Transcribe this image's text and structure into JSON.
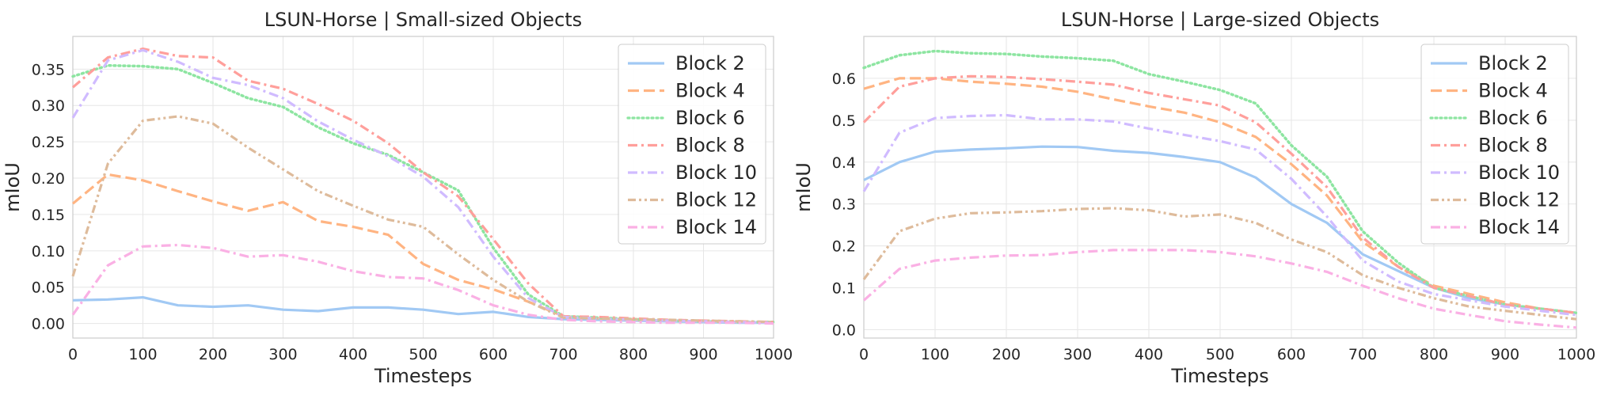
{
  "chart_data": [
    {
      "type": "line",
      "title": "LSUN-Horse | Small-sized Objects",
      "xlabel": "Timesteps",
      "ylabel": "mIoU",
      "xlim": [
        0,
        1000
      ],
      "ylim": [
        -0.02,
        0.395
      ],
      "xticks": [
        0,
        100,
        200,
        300,
        400,
        500,
        600,
        700,
        800,
        900,
        1000
      ],
      "yticks": [
        0.0,
        0.05,
        0.1,
        0.15,
        0.2,
        0.25,
        0.3,
        0.35
      ],
      "ytick_labels": [
        "0.00",
        "0.05",
        "0.10",
        "0.15",
        "0.20",
        "0.25",
        "0.30",
        "0.35"
      ],
      "grid": true,
      "legend": "upper right",
      "x": [
        0,
        50,
        100,
        150,
        200,
        250,
        300,
        350,
        400,
        450,
        500,
        550,
        600,
        650,
        700,
        750,
        800,
        850,
        900,
        950,
        1000
      ],
      "series": [
        {
          "name": "Block 2",
          "color": "#a1c9f4",
          "dash": "solid",
          "values": [
            0.032,
            0.033,
            0.036,
            0.025,
            0.023,
            0.025,
            0.019,
            0.017,
            0.022,
            0.022,
            0.019,
            0.013,
            0.016,
            0.009,
            0.006,
            0.005,
            0.004,
            0.003,
            0.002,
            0.001,
            0.001
          ]
        },
        {
          "name": "Block 4",
          "color": "#ffb482",
          "dash": "dashed",
          "values": [
            0.165,
            0.205,
            0.197,
            0.182,
            0.168,
            0.155,
            0.167,
            0.141,
            0.133,
            0.122,
            0.082,
            0.06,
            0.047,
            0.03,
            0.01,
            0.007,
            0.005,
            0.004,
            0.003,
            0.002,
            0.001
          ]
        },
        {
          "name": "Block 6",
          "color": "#8de5a1",
          "dash": "dotted",
          "values": [
            0.34,
            0.355,
            0.354,
            0.35,
            0.331,
            0.31,
            0.298,
            0.27,
            0.248,
            0.232,
            0.208,
            0.183,
            0.104,
            0.04,
            0.01,
            0.008,
            0.006,
            0.004,
            0.003,
            0.002,
            0.002
          ]
        },
        {
          "name": "Block 8",
          "color": "#ff9f9b",
          "dash": "dashdot",
          "values": [
            0.325,
            0.366,
            0.378,
            0.368,
            0.366,
            0.334,
            0.323,
            0.302,
            0.279,
            0.248,
            0.208,
            0.175,
            0.116,
            0.055,
            0.01,
            0.009,
            0.007,
            0.005,
            0.004,
            0.003,
            0.002
          ]
        },
        {
          "name": "Block 10",
          "color": "#d0bbff",
          "dash": "dashdot",
          "values": [
            0.283,
            0.362,
            0.376,
            0.36,
            0.338,
            0.328,
            0.31,
            0.278,
            0.253,
            0.23,
            0.202,
            0.16,
            0.092,
            0.035,
            0.009,
            0.007,
            0.005,
            0.004,
            0.003,
            0.002,
            0.001
          ]
        },
        {
          "name": "Block 12",
          "color": "#debb9b",
          "dash": "dashdotdot",
          "values": [
            0.065,
            0.22,
            0.279,
            0.285,
            0.275,
            0.242,
            0.212,
            0.182,
            0.162,
            0.143,
            0.133,
            0.095,
            0.06,
            0.03,
            0.008,
            0.007,
            0.006,
            0.005,
            0.004,
            0.003,
            0.002
          ]
        },
        {
          "name": "Block 14",
          "color": "#fab0e4",
          "dash": "dashdot",
          "values": [
            0.012,
            0.08,
            0.106,
            0.108,
            0.104,
            0.092,
            0.094,
            0.085,
            0.072,
            0.064,
            0.062,
            0.046,
            0.025,
            0.012,
            0.005,
            0.003,
            0.002,
            0.001,
            0.001,
            0.001,
            0.0
          ]
        }
      ]
    },
    {
      "type": "line",
      "title": "LSUN-Horse | Large-sized Objects",
      "xlabel": "Timesteps",
      "ylabel": "mIoU",
      "xlim": [
        0,
        1000
      ],
      "ylim": [
        -0.02,
        0.7
      ],
      "xticks": [
        0,
        100,
        200,
        300,
        400,
        500,
        600,
        700,
        800,
        900,
        1000
      ],
      "yticks": [
        0.0,
        0.1,
        0.2,
        0.3,
        0.4,
        0.5,
        0.6
      ],
      "ytick_labels": [
        "0.0",
        "0.1",
        "0.2",
        "0.3",
        "0.4",
        "0.5",
        "0.6"
      ],
      "grid": true,
      "legend": "upper right",
      "x": [
        0,
        50,
        100,
        150,
        200,
        250,
        300,
        350,
        400,
        450,
        500,
        550,
        600,
        650,
        700,
        750,
        800,
        850,
        900,
        950,
        1000
      ],
      "series": [
        {
          "name": "Block 2",
          "color": "#a1c9f4",
          "dash": "solid",
          "values": [
            0.357,
            0.4,
            0.425,
            0.43,
            0.433,
            0.437,
            0.436,
            0.427,
            0.422,
            0.412,
            0.4,
            0.363,
            0.3,
            0.255,
            0.18,
            0.14,
            0.1,
            0.075,
            0.06,
            0.05,
            0.04
          ]
        },
        {
          "name": "Block 4",
          "color": "#ffb482",
          "dash": "dashed",
          "values": [
            0.575,
            0.6,
            0.6,
            0.592,
            0.587,
            0.58,
            0.568,
            0.55,
            0.533,
            0.518,
            0.495,
            0.46,
            0.395,
            0.32,
            0.21,
            0.15,
            0.105,
            0.085,
            0.065,
            0.05,
            0.04
          ]
        },
        {
          "name": "Block 6",
          "color": "#8de5a1",
          "dash": "dotted",
          "values": [
            0.625,
            0.655,
            0.665,
            0.66,
            0.658,
            0.652,
            0.648,
            0.642,
            0.61,
            0.592,
            0.572,
            0.54,
            0.44,
            0.365,
            0.235,
            0.16,
            0.1,
            0.08,
            0.06,
            0.05,
            0.04
          ]
        },
        {
          "name": "Block 8",
          "color": "#ff9f9b",
          "dash": "dashdot",
          "values": [
            0.495,
            0.58,
            0.6,
            0.605,
            0.603,
            0.598,
            0.592,
            0.585,
            0.565,
            0.55,
            0.535,
            0.495,
            0.42,
            0.34,
            0.22,
            0.15,
            0.1,
            0.08,
            0.06,
            0.05,
            0.04
          ]
        },
        {
          "name": "Block 10",
          "color": "#d0bbff",
          "dash": "dashdot",
          "values": [
            0.33,
            0.47,
            0.505,
            0.51,
            0.512,
            0.502,
            0.502,
            0.497,
            0.48,
            0.465,
            0.45,
            0.43,
            0.36,
            0.27,
            0.165,
            0.115,
            0.085,
            0.07,
            0.055,
            0.045,
            0.035
          ]
        },
        {
          "name": "Block 12",
          "color": "#debb9b",
          "dash": "dashdotdot",
          "values": [
            0.12,
            0.235,
            0.265,
            0.278,
            0.28,
            0.283,
            0.288,
            0.29,
            0.285,
            0.27,
            0.275,
            0.255,
            0.215,
            0.185,
            0.13,
            0.1,
            0.075,
            0.055,
            0.045,
            0.035,
            0.025
          ]
        },
        {
          "name": "Block 14",
          "color": "#fab0e4",
          "dash": "dashdot",
          "values": [
            0.07,
            0.145,
            0.165,
            0.172,
            0.177,
            0.178,
            0.185,
            0.19,
            0.19,
            0.19,
            0.185,
            0.175,
            0.158,
            0.138,
            0.105,
            0.075,
            0.05,
            0.035,
            0.02,
            0.012,
            0.005
          ]
        }
      ]
    }
  ]
}
